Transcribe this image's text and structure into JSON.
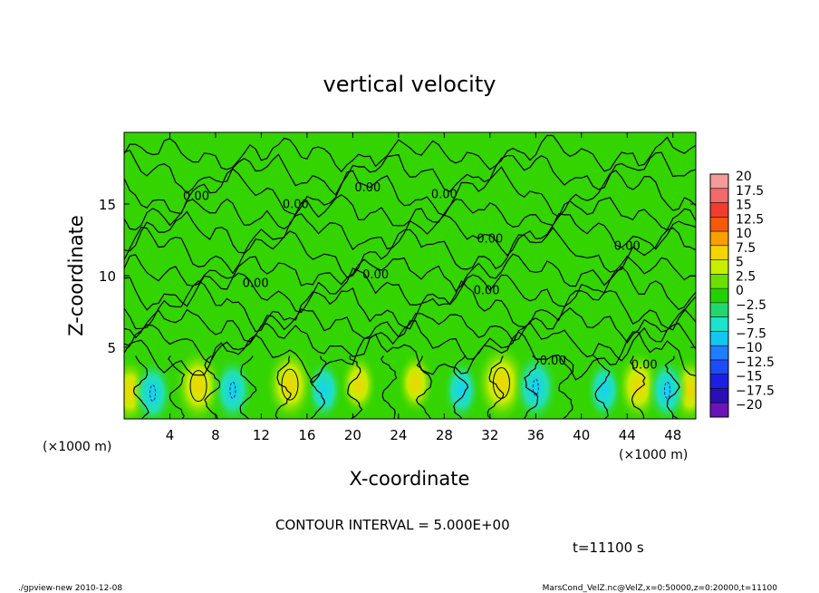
{
  "chart_data": {
    "type": "heatmap",
    "title": "vertical velocity",
    "xlabel": "X-coordinate",
    "ylabel": "Z-coordinate",
    "x_unit_left": "(×1000 m)",
    "x_unit_right": "(×1000 m)",
    "xlim": [
      0,
      50
    ],
    "ylim": [
      0,
      20
    ],
    "x_ticks": [
      "4",
      "8",
      "12",
      "16",
      "20",
      "24",
      "28",
      "32",
      "36",
      "40",
      "44",
      "48"
    ],
    "y_ticks": [
      "5",
      "10",
      "15"
    ],
    "x_tick_values": [
      4,
      8,
      12,
      16,
      20,
      24,
      28,
      32,
      36,
      40,
      44,
      48
    ],
    "y_tick_values": [
      5,
      10,
      15
    ],
    "contour_interval_text": "CONTOUR INTERVAL = 5.000E+00",
    "time_text": "t=11100 s",
    "footer_left": "./gpview-new  2010-12-08",
    "footer_right": "MarsCond_VelZ.nc@VelZ,x=0:50000,z=0:20000,t=11100",
    "contour_labels": [
      {
        "text": "0.00",
        "x": 6.3,
        "z": 15.3
      },
      {
        "text": "0.00",
        "x": 15.0,
        "z": 14.7
      },
      {
        "text": "0.00",
        "x": 21.3,
        "z": 15.9
      },
      {
        "text": "0.00",
        "x": 28.0,
        "z": 15.4
      },
      {
        "text": "0.00",
        "x": 32.0,
        "z": 12.3
      },
      {
        "text": "0.00",
        "x": 44.0,
        "z": 11.8
      },
      {
        "text": "0.00",
        "x": 22.0,
        "z": 9.8
      },
      {
        "text": "0.00",
        "x": 31.7,
        "z": 8.7
      },
      {
        "text": "0.00",
        "x": 11.5,
        "z": 9.2
      },
      {
        "text": "0.00",
        "x": 37.5,
        "z": 3.8
      },
      {
        "text": "0.00",
        "x": 45.5,
        "z": 3.5
      }
    ],
    "features": [
      {
        "kind": "updraft",
        "x": 0.5,
        "z": 1.9,
        "w": 4
      },
      {
        "kind": "updraft",
        "x": 6.5,
        "z": 2.3,
        "w": 6
      },
      {
        "kind": "updraft",
        "x": 14.5,
        "z": 2.4,
        "w": 6
      },
      {
        "kind": "updraft",
        "x": 20.5,
        "z": 2.4,
        "w": 3
      },
      {
        "kind": "updraft",
        "x": 25.5,
        "z": 2.5,
        "w": 3
      },
      {
        "kind": "updraft",
        "x": 33.0,
        "z": 2.5,
        "w": 7
      },
      {
        "kind": "updraft",
        "x": 45.0,
        "z": 2.3,
        "w": 5
      },
      {
        "kind": "updraft",
        "x": 49.5,
        "z": 2.0,
        "w": 4
      },
      {
        "kind": "downdraft",
        "x": 2.5,
        "z": 1.8,
        "w": -4
      },
      {
        "kind": "downdraft",
        "x": 9.5,
        "z": 2.0,
        "w": -4
      },
      {
        "kind": "downdraft",
        "x": 17.5,
        "z": 2.0,
        "w": -3
      },
      {
        "kind": "downdraft",
        "x": 29.5,
        "z": 2.0,
        "w": -3
      },
      {
        "kind": "downdraft",
        "x": 36.0,
        "z": 2.2,
        "w": -5
      },
      {
        "kind": "downdraft",
        "x": 42.0,
        "z": 2.0,
        "w": -3
      },
      {
        "kind": "downdraft",
        "x": 47.5,
        "z": 2.0,
        "w": -4
      }
    ]
  },
  "colorbar": {
    "labels": [
      "20",
      "17.5",
      "15",
      "12.5",
      "10",
      "7.5",
      "5",
      "2.5",
      "0",
      "−2.5",
      "−5",
      "−7.5",
      "−10",
      "−12.5",
      "−15",
      "−17.5",
      "−20"
    ],
    "colors": [
      "#f49a9a",
      "#f36a6a",
      "#f23c2e",
      "#f45a0a",
      "#f7a000",
      "#f4d400",
      "#c8ee00",
      "#6be000",
      "#22d200",
      "#22d86e",
      "#1ce3c9",
      "#12c8f0",
      "#1f7dff",
      "#1d4cf7",
      "#1d1fe0",
      "#2a0fb8",
      "#6b14b5"
    ]
  }
}
